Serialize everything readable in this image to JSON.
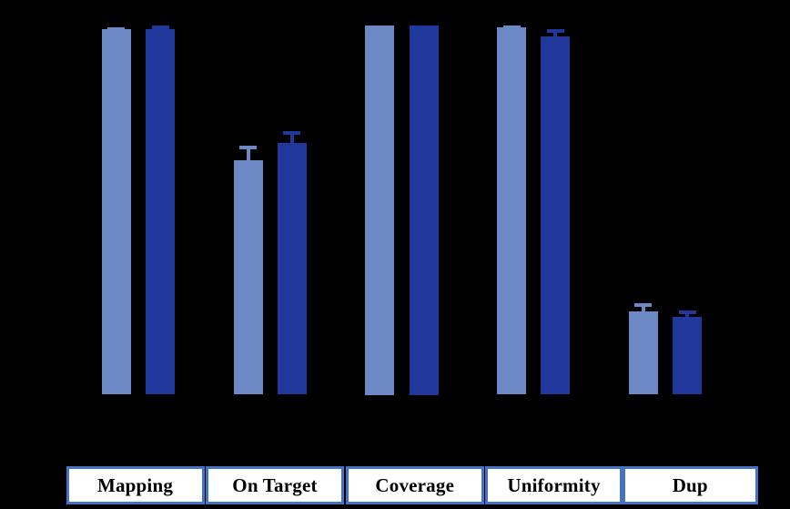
{
  "chart_data": {
    "type": "bar",
    "title": "",
    "categories": [
      "Mapping",
      "On Target",
      "Coverage",
      "Uniformity",
      "Dup"
    ],
    "series": [
      {
        "name": "light-blue-series",
        "color": "#6D89C5",
        "values": [
          99.0,
          63.6,
          100.0,
          99.5,
          22.6
        ],
        "errors": [
          0.5,
          3.9,
          0,
          0.5,
          2.1
        ]
      },
      {
        "name": "dark-blue-series",
        "color": "#20389B",
        "values": [
          99.0,
          68.3,
          100.0,
          97.1,
          21.0
        ],
        "errors": [
          1.0,
          3.0,
          0,
          2.0,
          1.8
        ]
      }
    ],
    "xlabel": "",
    "ylabel": "",
    "ylim": [
      0,
      100
    ],
    "axes_visible": false,
    "grid": false,
    "legend": false,
    "background_color": "#000000",
    "category_box_border_color": "#4472C4",
    "category_box_fill_color": "#ffffff",
    "category_text_color": "#000000"
  }
}
